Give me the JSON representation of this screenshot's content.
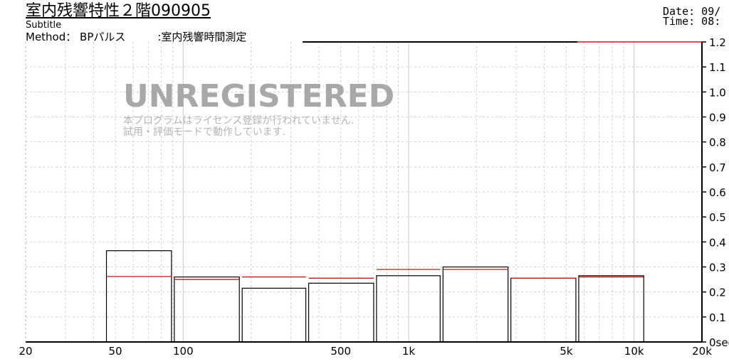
{
  "header": {
    "title": "室内残響特性２階090905",
    "subtitle": "Subtitle",
    "method": "Method： BPパルス　　　:室内残響時間測定",
    "date": "Date: 09/",
    "time": "Time: 08:"
  },
  "watermark": {
    "title": "UNREGISTERED",
    "line1": "本プログラムはライセンス登録が行われていません.",
    "line2": "試用・評価モードで動作しています."
  },
  "chart_data": {
    "type": "bar",
    "xscale": "log",
    "xlim": [
      20,
      20000
    ],
    "ylim": [
      0,
      1.2
    ],
    "grid": true,
    "x_ticks": [
      "20",
      "50",
      "100",
      "500",
      "1k",
      "5k",
      "10k",
      "20k"
    ],
    "x_tick_values": [
      20,
      50,
      100,
      500,
      1000,
      5000,
      10000,
      20000
    ],
    "y_ticks": [
      "1.2",
      "1.1",
      "1.0",
      "0.9",
      "0.8",
      "0.7",
      "0.6",
      "0.5",
      "0.4",
      "0.3",
      "0.2",
      "0.1",
      "0sec"
    ],
    "y_tick_values": [
      1.2,
      1.1,
      1.0,
      0.9,
      0.8,
      0.7,
      0.6,
      0.5,
      0.4,
      0.3,
      0.2,
      0.1,
      0
    ],
    "bands": [
      {
        "low": 45,
        "high": 90
      },
      {
        "low": 90,
        "high": 180
      },
      {
        "low": 180,
        "high": 355
      },
      {
        "low": 355,
        "high": 710
      },
      {
        "low": 710,
        "high": 1400
      },
      {
        "low": 1400,
        "high": 2800
      },
      {
        "low": 2800,
        "high": 5600
      },
      {
        "low": 5600,
        "high": 11200
      }
    ],
    "series": [
      {
        "color": "#000000",
        "values": [
          0.365,
          0.26,
          0.215,
          0.235,
          0.265,
          0.3,
          0.255,
          0.265
        ]
      },
      {
        "color": "#c01818",
        "values": [
          0.262,
          0.25,
          0.26,
          0.255,
          0.29,
          0.29,
          0.255,
          0.26
        ]
      }
    ],
    "reference_line": {
      "color": "#c01818",
      "x_from": 5600,
      "x_to": 20000,
      "y": 1.2
    }
  }
}
